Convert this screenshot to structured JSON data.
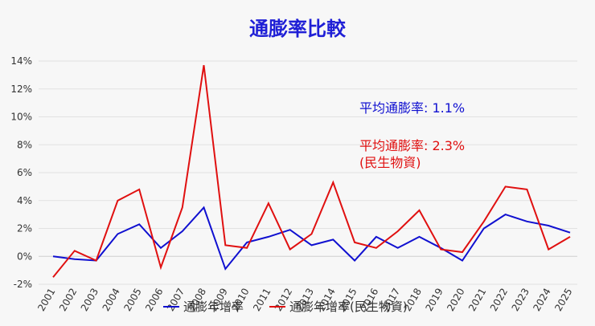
{
  "chart_data": {
    "type": "line",
    "title": "通膨率比較",
    "xlabel": "",
    "ylabel": "",
    "categories": [
      "2001",
      "2002",
      "2003",
      "2004",
      "2005",
      "2006",
      "2007",
      "2008",
      "2009",
      "2010",
      "2011",
      "2012",
      "2013",
      "2014",
      "2015",
      "2016",
      "2017",
      "2018",
      "2019",
      "2020",
      "2021",
      "2022",
      "2023",
      "2024",
      "2025"
    ],
    "ylim": [
      -2,
      14
    ],
    "yticks": [
      -2,
      0,
      2,
      4,
      6,
      8,
      10,
      12,
      14
    ],
    "ytick_labels": [
      "-2%",
      "0%",
      "2%",
      "4%",
      "6%",
      "8%",
      "10%",
      "12%",
      "14%"
    ],
    "grid": "horizontal",
    "legend_position": "bottom",
    "series": [
      {
        "name": "通膨年增率",
        "color": "#1010d0",
        "values": [
          0.0,
          -0.2,
          -0.3,
          1.6,
          2.3,
          0.6,
          1.8,
          3.5,
          -0.9,
          1.0,
          1.4,
          1.9,
          0.8,
          1.2,
          -0.3,
          1.4,
          0.6,
          1.4,
          0.6,
          -0.3,
          2.0,
          3.0,
          2.5,
          2.2,
          1.7
        ]
      },
      {
        "name": "通膨年增率(民生物資)",
        "color": "#e01010",
        "values": [
          -1.5,
          0.4,
          -0.3,
          4.0,
          4.8,
          -0.8,
          3.5,
          13.7,
          0.8,
          0.6,
          3.8,
          0.5,
          1.6,
          5.3,
          1.0,
          0.6,
          1.8,
          3.3,
          0.5,
          0.3,
          2.5,
          5.0,
          4.8,
          0.5,
          1.4
        ]
      }
    ],
    "annotations": [
      {
        "text": "平均通膨率: 1.1%",
        "color": "#1010d0"
      },
      {
        "text": "平均通膨率: 2.3%",
        "color": "#e01010"
      },
      {
        "text": "(民生物資)",
        "color": "#e01010"
      }
    ]
  }
}
